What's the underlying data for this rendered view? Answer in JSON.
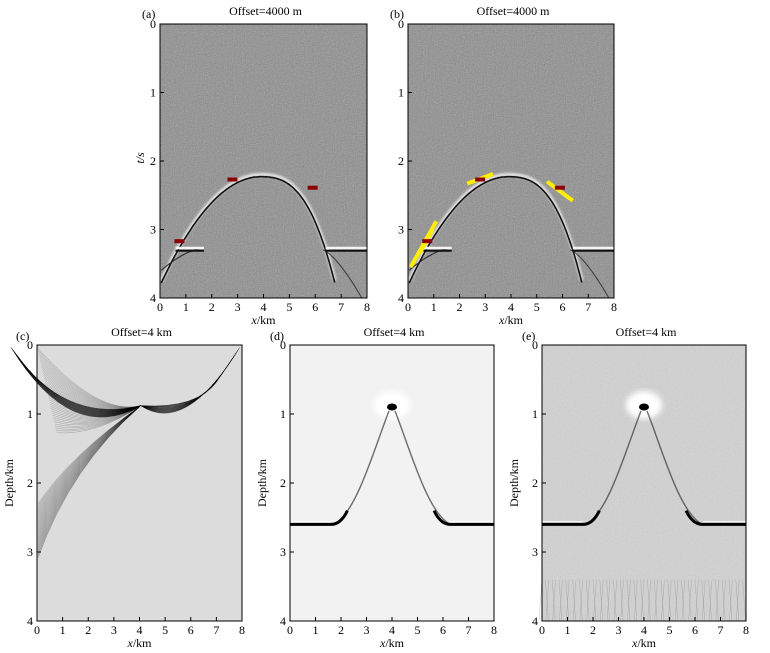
{
  "panels": [
    {
      "id": "a",
      "letter": "(a)",
      "title": "Offset=4000 m",
      "xlabel_var": "x",
      "xlabel_unit": "/km",
      "ylabel": "t/s",
      "xticks": [
        "0",
        "1",
        "2",
        "3",
        "4",
        "5",
        "6",
        "7",
        "8"
      ],
      "yticks": [
        "0",
        "1",
        "2",
        "3",
        "4"
      ],
      "background": "#8a8a8a",
      "picks": [
        {
          "x": 0.75,
          "t": 3.17
        },
        {
          "x": 2.8,
          "t": 2.27
        },
        {
          "x": 5.9,
          "t": 2.39
        }
      ],
      "pick_color": "#8b0000"
    },
    {
      "id": "b",
      "letter": "(b)",
      "title": "Offset=4000 m",
      "xlabel_var": "x",
      "xlabel_unit": "/km",
      "ylabel": "t/s",
      "xticks": [
        "0",
        "1",
        "2",
        "3",
        "4",
        "5",
        "6",
        "7",
        "8"
      ],
      "yticks": [
        "0",
        "1",
        "2",
        "3",
        "4"
      ],
      "background": "#8a8a8a",
      "picks": [
        {
          "x": 0.75,
          "t": 3.17
        },
        {
          "x": 2.8,
          "t": 2.27
        },
        {
          "x": 5.9,
          "t": 2.39
        }
      ],
      "pick_color": "#8b0000",
      "slope_color": "#ffee00"
    },
    {
      "id": "c",
      "letter": "(c)",
      "title": "Offset=4 km",
      "xlabel_var": "x",
      "xlabel_unit": "/km",
      "ylabel": "Depth/km",
      "xticks": [
        "0",
        "1",
        "2",
        "3",
        "4",
        "5",
        "6",
        "7",
        "8"
      ],
      "yticks": [
        "0",
        "1",
        "2",
        "3",
        "4"
      ],
      "background": "#dcdcdc"
    },
    {
      "id": "d",
      "letter": "(d)",
      "title": "Offset=4 km",
      "xlabel_var": "x",
      "xlabel_unit": "/km",
      "ylabel": "Depth/km",
      "xticks": [
        "0",
        "1",
        "2",
        "3",
        "4",
        "5",
        "6",
        "7",
        "8"
      ],
      "yticks": [
        "0",
        "1",
        "2",
        "3",
        "4"
      ],
      "background": "#f2f2f2"
    },
    {
      "id": "e",
      "letter": "(e)",
      "title": "Offset=4 km",
      "xlabel_var": "x",
      "xlabel_unit": "/km",
      "ylabel": "Depth/km",
      "xticks": [
        "0",
        "1",
        "2",
        "3",
        "4",
        "5",
        "6",
        "7",
        "8"
      ],
      "yticks": [
        "0",
        "1",
        "2",
        "3",
        "4"
      ],
      "background": "#d2d2d2"
    }
  ]
}
